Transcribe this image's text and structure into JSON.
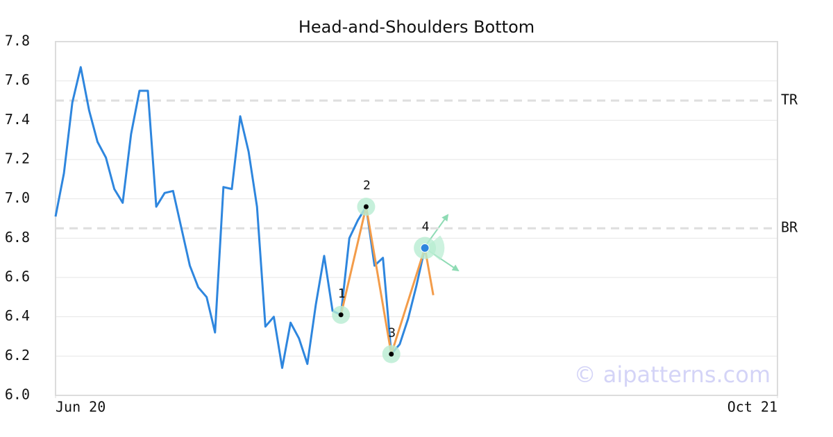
{
  "chart_data": {
    "type": "line",
    "title": "Head-and-Shoulders Bottom",
    "xlim": [
      0,
      86
    ],
    "xticks": [
      {
        "value": 0,
        "label": "Jun 20"
      },
      {
        "value": 86,
        "label": "Oct 21"
      }
    ],
    "ylim": [
      6,
      7.8
    ],
    "yticks": [
      {
        "value": 6,
        "label": "6.0"
      },
      6.2,
      6.4,
      6.6,
      6.8,
      {
        "value": 7,
        "label": "7.0"
      },
      7.2,
      7.4,
      7.6,
      7.8
    ],
    "grid": true,
    "series": [
      {
        "color": "#2e86de",
        "x": [
          0,
          1,
          2,
          3,
          4,
          5,
          6,
          7,
          8,
          9,
          10,
          11,
          12,
          13,
          14,
          15,
          16,
          17,
          18,
          19,
          20,
          21,
          22,
          23,
          24,
          25,
          26,
          27,
          28,
          29,
          30,
          31,
          32,
          33,
          34,
          35,
          36,
          37,
          38,
          39,
          40,
          41,
          42,
          43,
          44
        ],
        "values": [
          6.91,
          7.13,
          7.49,
          7.67,
          7.45,
          7.29,
          7.21,
          7.05,
          6.98,
          7.33,
          7.55,
          7.55,
          6.96,
          7.03,
          7.04,
          6.85,
          6.66,
          6.55,
          6.5,
          6.32,
          7.06,
          7.05,
          7.42,
          7.24,
          6.96,
          6.35,
          6.4,
          6.14,
          6.37,
          6.29,
          6.16,
          6.46,
          6.71,
          6.43,
          6.41,
          6.8,
          6.89,
          6.96,
          6.66,
          6.7,
          6.21,
          6.26,
          6.39,
          6.56,
          6.75
        ]
      },
      {
        "color": "#f39c4a",
        "x": [
          34,
          37,
          40,
          44,
          45
        ],
        "values": [
          6.41,
          6.96,
          6.21,
          6.75,
          6.51
        ]
      }
    ],
    "pivot_labels": [
      "1",
      "2",
      "3",
      "4"
    ],
    "hlines": [
      {
        "label": "TR",
        "value": 7.5
      },
      {
        "label": "BR",
        "value": 6.85
      }
    ],
    "watermark": "© aipatterns.com"
  }
}
